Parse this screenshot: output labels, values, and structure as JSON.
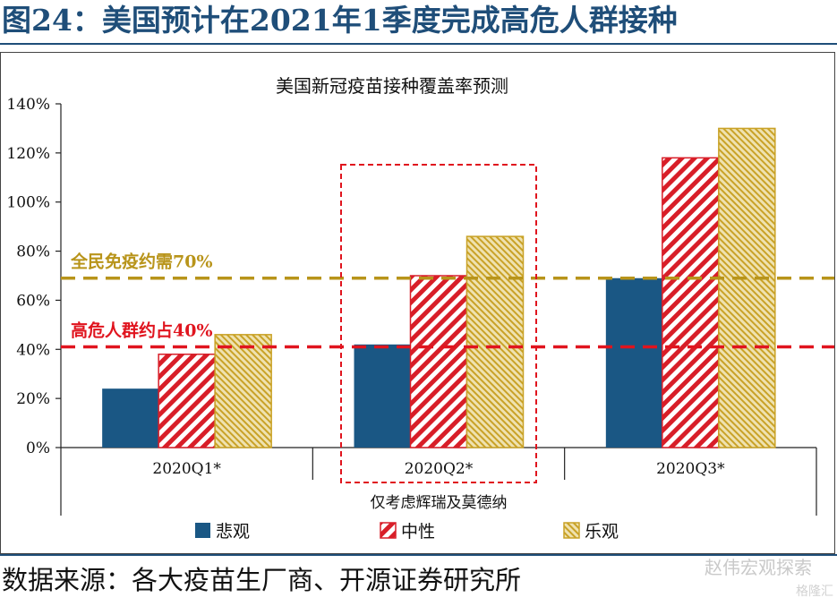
{
  "figure_title": "图24：美国预计在2021年1季度完成高危人群接种",
  "source_note": "数据来源：各大疫苗生厂商、开源证券研究所",
  "watermark": "赵伟宏观探索",
  "watermark_sub": "格隆汇",
  "colors": {
    "pessimistic": "#1a5784",
    "neutral": "#d81e28",
    "optimistic": "#c9a227",
    "line_70": "#b8941a",
    "line_40": "#e0141e",
    "highlight_box": "#e0141e",
    "title": "#1f4e79"
  },
  "chart_data": {
    "type": "bar",
    "title": "美国新冠疫苗接种覆盖率预测",
    "categories": [
      "2020Q1*",
      "2020Q2*",
      "2020Q3*"
    ],
    "series": [
      {
        "name": "悲观",
        "values": [
          24,
          42,
          69
        ],
        "pattern": "solid"
      },
      {
        "name": "中性",
        "values": [
          38,
          70,
          118
        ],
        "pattern": "hatch"
      },
      {
        "name": "乐观",
        "values": [
          46,
          86,
          130
        ],
        "pattern": "hatch-dense"
      }
    ],
    "ylim": [
      0,
      140
    ],
    "yticks": [
      "0%",
      "20%",
      "40%",
      "60%",
      "80%",
      "100%",
      "120%",
      "140%"
    ],
    "ytick_values": [
      0,
      20,
      40,
      60,
      80,
      100,
      120,
      140
    ],
    "reference_lines": [
      {
        "value": 69,
        "label": "全民免疫约需70%"
      },
      {
        "value": 41,
        "label": "高危人群约占40%"
      }
    ],
    "highlight_category": "2020Q2*",
    "x_note": "仅考虑辉瑞及莫德纳",
    "legend_position": "bottom",
    "grid": false
  }
}
